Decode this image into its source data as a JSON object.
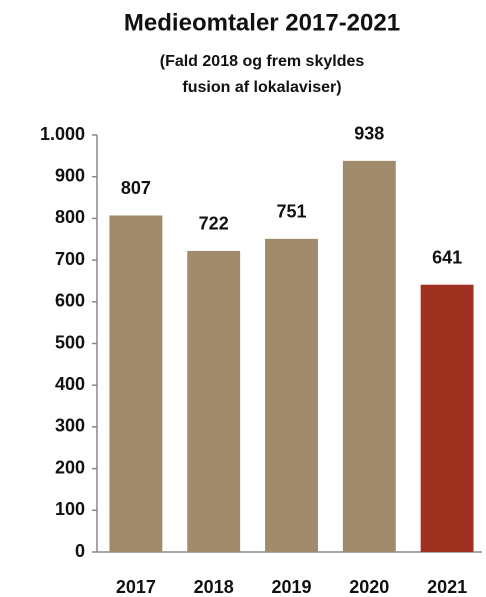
{
  "chart_data": {
    "type": "bar",
    "title": "Medieomtaler 2017-2021",
    "subtitle": [
      "(Fald 2018 og frem skyldes",
      "fusion af lokalaviser)"
    ],
    "categories": [
      "2017",
      "2018",
      "2019",
      "2020",
      "2021"
    ],
    "values": [
      807,
      722,
      751,
      938,
      641
    ],
    "colors": [
      "#a08b6c",
      "#a08b6c",
      "#a08b6c",
      "#a08b6c",
      "#9e3120"
    ],
    "ylim": [
      0,
      1000
    ],
    "yticks": [
      0,
      100,
      200,
      300,
      400,
      500,
      600,
      700,
      800,
      900,
      {
        "value": 1000,
        "label": "1.000"
      }
    ],
    "grid": false
  }
}
